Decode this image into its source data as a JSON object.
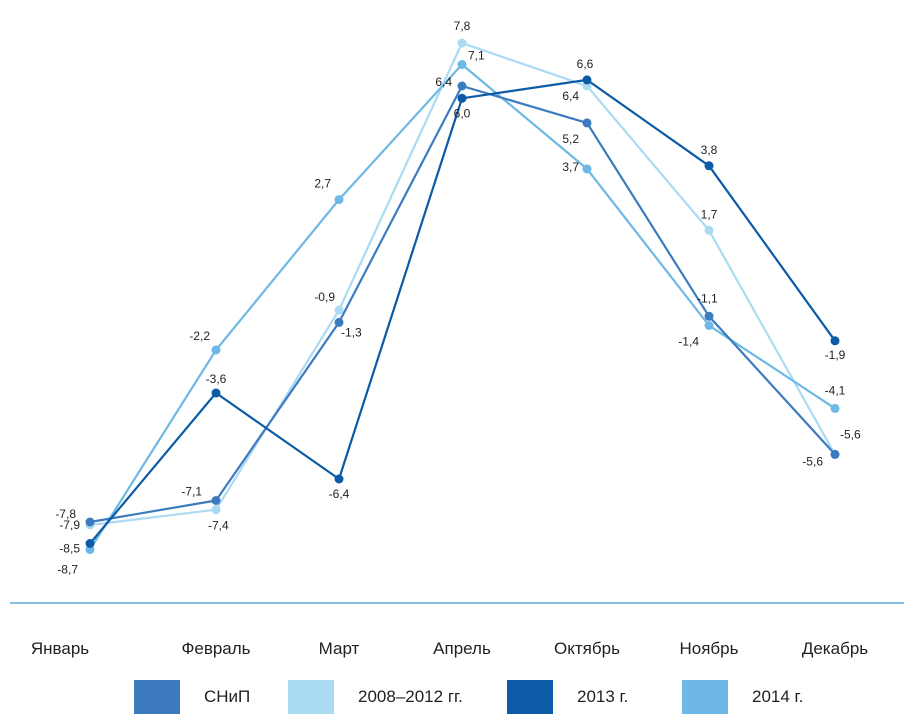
{
  "chart_data": {
    "type": "line",
    "categories": [
      "Январь",
      "Февраль",
      "Март",
      "Апрель",
      "Октябрь",
      "Ноябрь",
      "Декабрь"
    ],
    "series": [
      {
        "name": "СНиП",
        "color": "#3d7bbf",
        "values": [
          -7.8,
          -7.1,
          -1.3,
          6.4,
          5.2,
          -1.1,
          -5.6
        ],
        "labels": [
          "-7,8",
          "-7,1",
          "-1,3",
          "6,4",
          "5,2",
          "-1,1",
          "-5,6"
        ]
      },
      {
        "name": "2008–2012 гг.",
        "color": "#abdaf3",
        "values": [
          -7.9,
          -7.4,
          -0.9,
          7.8,
          6.4,
          1.7,
          -5.6
        ],
        "labels": [
          "-7,9",
          "-7,4",
          "-0,9",
          "7,8",
          "6,4",
          "1,7",
          "-5,6"
        ]
      },
      {
        "name": "2013 г.",
        "color": "#0b5ba6",
        "values": [
          -8.5,
          -3.6,
          -6.4,
          6.0,
          6.6,
          3.8,
          -1.9
        ],
        "labels": [
          "-8,5",
          "-3,6",
          "-6,4",
          "6,0",
          "6,6",
          "3,8",
          "-1,9"
        ]
      },
      {
        "name": "2014 г.",
        "color": "#6db8e4",
        "values": [
          -8.7,
          -2.2,
          2.7,
          7.1,
          3.7,
          -1.4,
          -4.1
        ],
        "labels": [
          "-8,7",
          "-2,2",
          "2,7",
          "7,1",
          "3,7",
          "-1,4",
          "-4,1"
        ]
      }
    ],
    "axis_line_color": "#5ba8dc",
    "grid": false,
    "legend_position": "bottom"
  }
}
